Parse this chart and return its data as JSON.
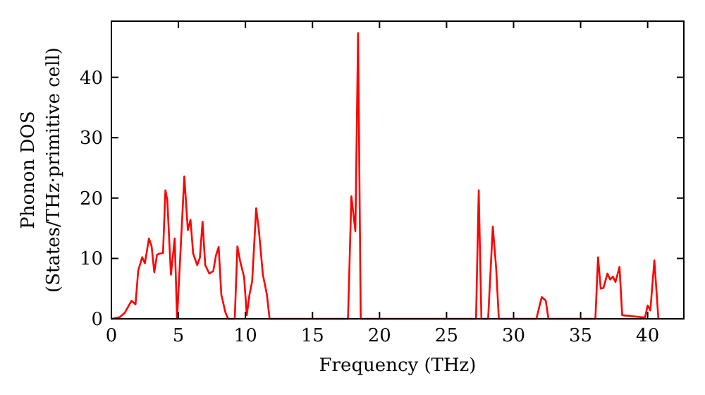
{
  "chart_data": {
    "type": "line",
    "xlabel": "Frequency (THz)",
    "ylabel": "Phonon DOS\n(States/THz·primitive cell)",
    "xlim": [
      0,
      42.7
    ],
    "ylim": [
      0,
      49.3
    ],
    "xticks": [
      0,
      5,
      10,
      15,
      20,
      25,
      30,
      35,
      40
    ],
    "yticks": [
      0,
      10,
      20,
      30,
      40
    ],
    "grid": false,
    "series": [
      {
        "color": "#ff0000",
        "x": [
          0,
          0.3,
          0.63,
          1.0,
          1.5,
          1.8,
          2.0,
          2.3,
          2.5,
          2.8,
          3.0,
          3.2,
          3.4,
          3.6,
          3.85,
          4.03,
          4.17,
          4.44,
          4.72,
          4.9,
          5.44,
          5.7,
          5.9,
          6.1,
          6.4,
          6.6,
          6.8,
          7.0,
          7.3,
          7.6,
          7.8,
          8.0,
          8.2,
          8.5,
          8.7,
          9.2,
          9.4,
          9.6,
          9.9,
          10.1,
          10.3,
          10.5,
          10.8,
          11.0,
          11.3,
          11.6,
          11.8,
          17.65,
          17.9,
          18.2,
          18.4,
          18.6,
          27.2,
          27.4,
          27.6,
          28.1,
          28.45,
          28.7,
          28.9,
          31.7,
          32.1,
          32.4,
          32.6,
          36.1,
          36.3,
          36.5,
          36.7,
          37.0,
          37.2,
          37.4,
          37.6,
          37.9,
          38.1,
          39.8,
          40.0,
          40.2,
          40.5,
          40.8
        ],
        "values": [
          0,
          0.1,
          0.3,
          1.0,
          3.0,
          2.4,
          8.0,
          10.2,
          9.2,
          13.3,
          12,
          7.7,
          10.6,
          10.8,
          10.9,
          21.3,
          19.7,
          7.3,
          13.3,
          0,
          23.6,
          14.7,
          16.4,
          10.8,
          8.9,
          10.1,
          16.1,
          8.9,
          7.5,
          7.9,
          10.5,
          11.9,
          4.0,
          1.1,
          0,
          0,
          12,
          9.6,
          6.9,
          0.6,
          4.0,
          6.2,
          18.3,
          14.7,
          7.3,
          4.0,
          0,
          0,
          20.3,
          14.5,
          47.3,
          0,
          0,
          21.3,
          0,
          0,
          15.3,
          8.4,
          0,
          0,
          3.6,
          3.0,
          0,
          0,
          10.2,
          5.0,
          5.1,
          7.5,
          6.5,
          7.0,
          6.1,
          8.6,
          0.6,
          0.2,
          2.2,
          1.4,
          9.7,
          0
        ]
      }
    ]
  }
}
